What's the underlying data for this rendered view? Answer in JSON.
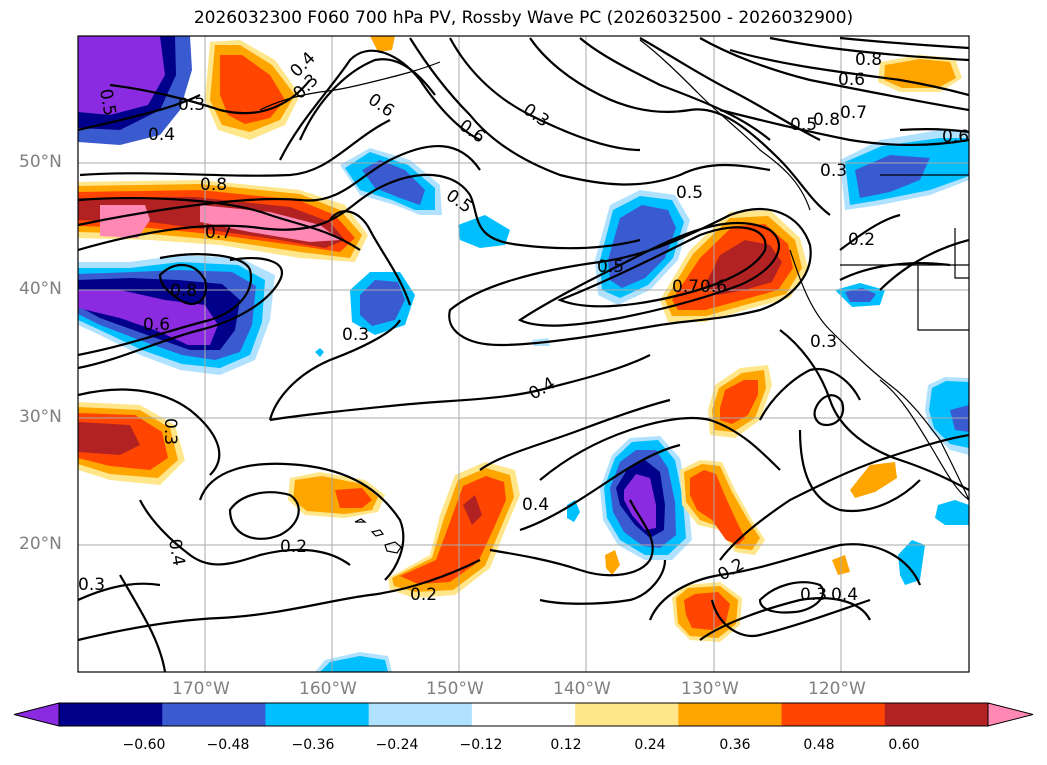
{
  "title": "2026032300 F060 700 hPa PV, Rossby Wave PC (2026032500 - 2026032900)",
  "latitude_labels": [
    "50°N",
    "40°N",
    "30°N",
    "20°N"
  ],
  "longitude_labels": [
    "170°W",
    "160°W",
    "150°W",
    "140°W",
    "130°W",
    "120°W"
  ],
  "contour_labels": [
    "0.5",
    "0.3",
    "0.4",
    "0.7",
    "0.8",
    "0.6",
    "0.3",
    "0.4",
    "0.6",
    "0.6",
    "0.8",
    "0.6",
    "0.5",
    "0.8",
    "0.3",
    "0.5",
    "0.7",
    "0.8",
    "0.6",
    "0.3",
    "0.5",
    "0.3",
    "0.5",
    "0.7",
    "0.6",
    "0.2",
    "0.3",
    "0.4",
    "0.3",
    "0.4",
    "0.2",
    "0.2",
    "0.2",
    "0.4",
    "0.3",
    "0.4",
    "0.3"
  ],
  "colorbar": {
    "ticks": [
      "−0.60",
      "−0.48",
      "−0.36",
      "−0.24",
      "−0.12",
      "0.12",
      "0.24",
      "0.36",
      "0.48",
      "0.60"
    ],
    "colors": [
      "#8a2be2",
      "#00008b",
      "#3a5bcf",
      "#00bfff",
      "#b0e2ff",
      "#ffffff",
      "#ffe68a",
      "#ffa500",
      "#ff4500",
      "#b22222",
      "#ff88b4"
    ]
  }
}
